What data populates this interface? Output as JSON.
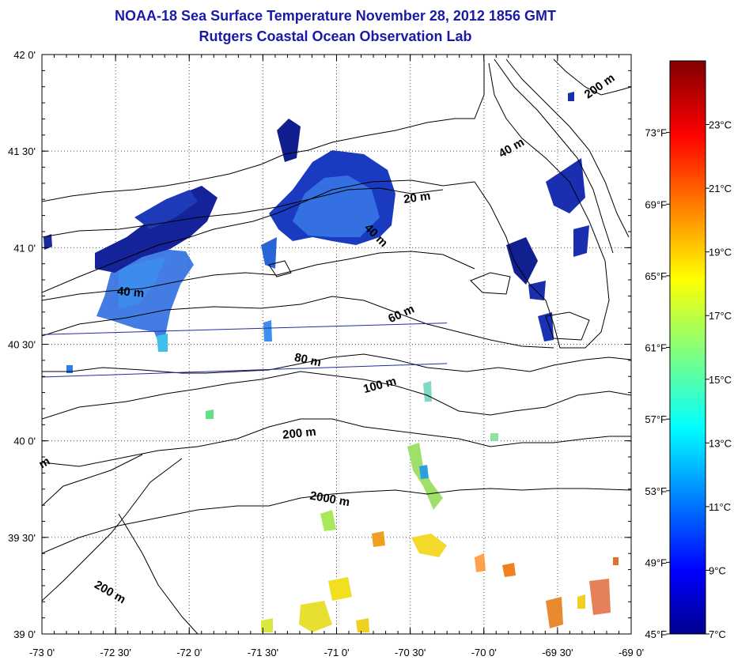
{
  "header": {
    "title": "NOAA-18 Sea Surface Temperature November 28, 2012 1856 GMT",
    "subtitle": "Rutgers Coastal Ocean Observation Lab"
  },
  "map": {
    "lon_range": [
      -73.0,
      -69.0
    ],
    "lat_range": [
      39.0,
      42.0
    ],
    "x_ticks": [
      {
        "value": -73.0,
        "label": "-73 0'"
      },
      {
        "value": -72.5,
        "label": "-72 30'"
      },
      {
        "value": -72.0,
        "label": "-72 0'"
      },
      {
        "value": -71.5,
        "label": "-71 30'"
      },
      {
        "value": -71.0,
        "label": "-71 0'"
      },
      {
        "value": -70.5,
        "label": "-70 30'"
      },
      {
        "value": -70.0,
        "label": "-70 0'"
      },
      {
        "value": -69.5,
        "label": "-69 30'"
      },
      {
        "value": -69.0,
        "label": "-69 0'"
      }
    ],
    "y_ticks": [
      {
        "value": 42.0,
        "label": "42 0'"
      },
      {
        "value": 41.5,
        "label": "41 30'"
      },
      {
        "value": 41.0,
        "label": "41 0'"
      },
      {
        "value": 40.5,
        "label": "40 30'"
      },
      {
        "value": 40.0,
        "label": "40 0'"
      },
      {
        "value": 39.5,
        "label": "39 30'"
      },
      {
        "value": 39.0,
        "label": "39 0'"
      }
    ],
    "contour_labels": [
      {
        "text": "200 m",
        "lon": -69.2,
        "lat": 41.82,
        "angle": 35
      },
      {
        "text": "40 m",
        "lon": -69.8,
        "lat": 41.5,
        "angle": 30
      },
      {
        "text": "20 m",
        "lon": -70.45,
        "lat": 41.24,
        "angle": 8
      },
      {
        "text": "40 m",
        "lon": -70.75,
        "lat": 41.05,
        "angle": -45
      },
      {
        "text": "40 m",
        "lon": -72.4,
        "lat": 40.75,
        "angle": -5
      },
      {
        "text": "60 m",
        "lon": -70.55,
        "lat": 40.64,
        "angle": 25
      },
      {
        "text": "80 m",
        "lon": -71.2,
        "lat": 40.4,
        "angle": -12
      },
      {
        "text": "100 m",
        "lon": -70.7,
        "lat": 40.27,
        "angle": 15
      },
      {
        "text": "200 m",
        "lon": -71.25,
        "lat": 40.02,
        "angle": 6
      },
      {
        "text": "2000 m",
        "lon": -71.05,
        "lat": 39.68,
        "angle": -10
      },
      {
        "text": "200 m",
        "lon": -72.55,
        "lat": 39.2,
        "angle": -30
      },
      {
        "text": "m",
        "lon": -72.97,
        "lat": 39.87,
        "angle": 30
      }
    ],
    "transect_lines": [
      {
        "from": [
          -73.0,
          40.55
        ],
        "to": [
          -70.25,
          40.61
        ]
      },
      {
        "from": [
          -73.0,
          40.33
        ],
        "to": [
          -70.25,
          40.4
        ]
      }
    ]
  },
  "colorbar": {
    "celsius_range": [
      7,
      25
    ],
    "fahrenheit_range": [
      45,
      77
    ],
    "celsius_labels": [
      "7°C",
      "9°C",
      "11°C",
      "13°C",
      "15°C",
      "17°C",
      "19°C",
      "21°C",
      "23°C"
    ],
    "fahrenheit_labels": [
      "45°F",
      "49°F",
      "53°F",
      "57°F",
      "61°F",
      "65°F",
      "69°F",
      "73°F"
    ],
    "celsius_values": [
      7,
      9,
      11,
      13,
      15,
      17,
      19,
      21,
      23
    ],
    "fahrenheit_values": [
      45,
      49,
      53,
      57,
      61,
      65,
      69,
      73
    ]
  },
  "colors": {
    "title": "#1a1aa6",
    "transect": "#1f2f9a",
    "colormap": "jet"
  }
}
